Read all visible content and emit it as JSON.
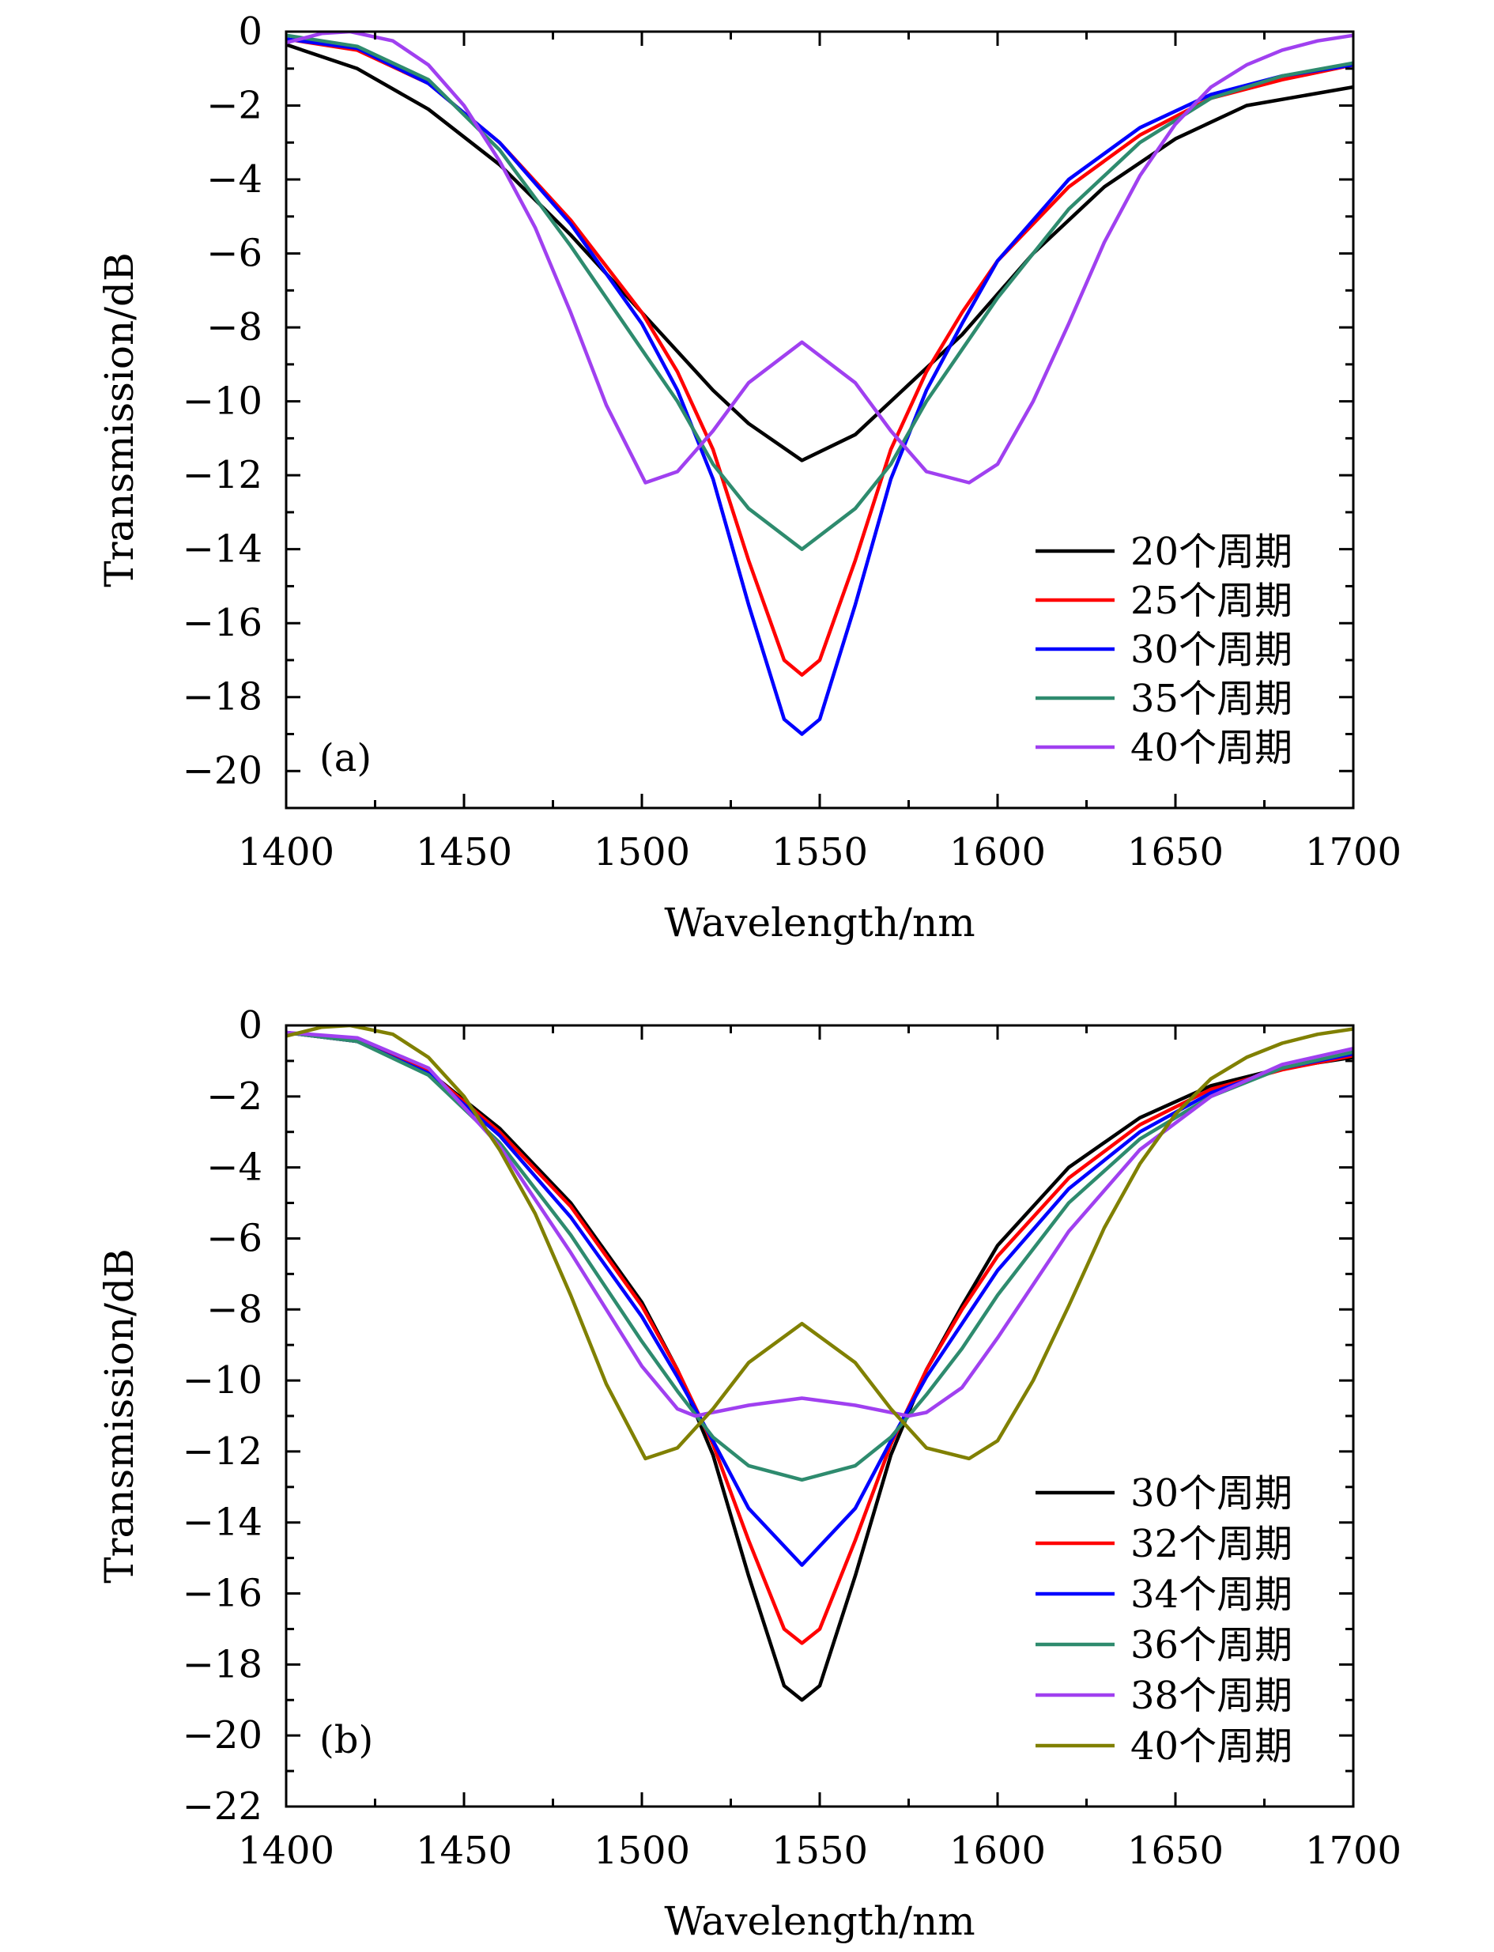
{
  "chart_data": [
    {
      "type": "line",
      "panel_label": "(a)",
      "xlabel": "Wavelength/nm",
      "ylabel": "Transmission/dB",
      "xlim": [
        1400,
        1700
      ],
      "ylim": [
        -21,
        0
      ],
      "xticks": [
        1400,
        1450,
        1500,
        1550,
        1600,
        1650,
        1700
      ],
      "xtick_labels": [
        "1400",
        "1450",
        "1500",
        "1550",
        "1600",
        "1650",
        "1700"
      ],
      "yticks": [
        0,
        -2,
        -4,
        -6,
        -8,
        -10,
        -12,
        -14,
        -16,
        -18,
        -20
      ],
      "ytick_labels": [
        "0",
        "−2",
        "−4",
        "−6",
        "−8",
        "−10",
        "−12",
        "−14",
        "−16",
        "−18",
        "−20"
      ],
      "grid": false,
      "legend_position": "bottom-right",
      "series": [
        {
          "name": "20个周期",
          "color": "#000000",
          "x": [
            1400,
            1420,
            1440,
            1460,
            1480,
            1500,
            1520,
            1530,
            1545,
            1560,
            1570,
            1590,
            1610,
            1630,
            1650,
            1670,
            1700
          ],
          "y": [
            -0.35,
            -1.0,
            -2.1,
            -3.6,
            -5.5,
            -7.6,
            -9.7,
            -10.6,
            -11.6,
            -10.9,
            -10.0,
            -8.2,
            -6.0,
            -4.2,
            -2.9,
            -2.0,
            -1.5
          ]
        },
        {
          "name": "25个周期",
          "color": "#ff0000",
          "x": [
            1400,
            1420,
            1440,
            1460,
            1480,
            1500,
            1510,
            1520,
            1530,
            1540,
            1545,
            1550,
            1560,
            1570,
            1580,
            1590,
            1600,
            1620,
            1640,
            1660,
            1680,
            1700
          ],
          "y": [
            -0.2,
            -0.5,
            -1.4,
            -3.0,
            -5.1,
            -7.6,
            -9.2,
            -11.3,
            -14.3,
            -17.0,
            -17.4,
            -17.0,
            -14.3,
            -11.3,
            -9.2,
            -7.6,
            -6.2,
            -4.2,
            -2.8,
            -1.8,
            -1.3,
            -0.9
          ]
        },
        {
          "name": "30个周期",
          "color": "#0000ff",
          "x": [
            1400,
            1420,
            1440,
            1460,
            1480,
            1500,
            1510,
            1520,
            1530,
            1540,
            1545,
            1550,
            1560,
            1570,
            1580,
            1590,
            1600,
            1620,
            1640,
            1660,
            1680,
            1700
          ],
          "y": [
            -0.2,
            -0.45,
            -1.4,
            -3.0,
            -5.2,
            -7.9,
            -9.7,
            -12.1,
            -15.5,
            -18.6,
            -19.0,
            -18.6,
            -15.5,
            -12.1,
            -9.7,
            -7.9,
            -6.2,
            -4.0,
            -2.6,
            -1.7,
            -1.2,
            -0.9
          ]
        },
        {
          "name": "35个周期",
          "color": "#2e8b6e",
          "x": [
            1400,
            1420,
            1440,
            1460,
            1480,
            1500,
            1510,
            1520,
            1530,
            1545,
            1560,
            1570,
            1580,
            1590,
            1600,
            1620,
            1640,
            1660,
            1680,
            1700
          ],
          "y": [
            -0.1,
            -0.4,
            -1.3,
            -3.2,
            -5.8,
            -8.6,
            -10.0,
            -11.7,
            -12.9,
            -14.0,
            -12.9,
            -11.7,
            -10.0,
            -8.6,
            -7.2,
            -4.8,
            -3.0,
            -1.8,
            -1.2,
            -0.85
          ]
        },
        {
          "name": "40个周期",
          "color": "#a040f0",
          "x": [
            1400,
            1410,
            1418,
            1430,
            1440,
            1450,
            1460,
            1470,
            1480,
            1490,
            1501,
            1510,
            1520,
            1530,
            1545,
            1560,
            1570,
            1580,
            1592,
            1600,
            1610,
            1620,
            1630,
            1640,
            1650,
            1660,
            1670,
            1680,
            1690,
            1700
          ],
          "y": [
            -0.3,
            -0.05,
            0.0,
            -0.25,
            -0.9,
            -2.0,
            -3.5,
            -5.3,
            -7.6,
            -10.1,
            -12.2,
            -11.9,
            -10.8,
            -9.5,
            -8.4,
            -9.5,
            -10.8,
            -11.9,
            -12.2,
            -11.7,
            -10.0,
            -7.9,
            -5.7,
            -3.9,
            -2.5,
            -1.5,
            -0.9,
            -0.5,
            -0.25,
            -0.1
          ]
        }
      ]
    },
    {
      "type": "line",
      "panel_label": "(b)",
      "xlabel": "Wavelength/nm",
      "ylabel": "Transmission/dB",
      "xlim": [
        1400,
        1700
      ],
      "ylim": [
        -22,
        0
      ],
      "xticks": [
        1400,
        1450,
        1500,
        1550,
        1600,
        1650,
        1700
      ],
      "xtick_labels": [
        "1400",
        "1450",
        "1500",
        "1550",
        "1600",
        "1650",
        "1700"
      ],
      "yticks": [
        0,
        -2,
        -4,
        -6,
        -8,
        -10,
        -12,
        -14,
        -16,
        -18,
        -20,
        -22
      ],
      "ytick_labels": [
        "0",
        "−2",
        "−4",
        "−6",
        "−8",
        "−10",
        "−12",
        "−14",
        "−16",
        "−18",
        "−20",
        "−22"
      ],
      "grid": false,
      "legend_position": "bottom-right",
      "series": [
        {
          "name": "30个周期",
          "color": "#000000",
          "x": [
            1400,
            1420,
            1440,
            1460,
            1480,
            1500,
            1510,
            1520,
            1530,
            1540,
            1545,
            1550,
            1560,
            1570,
            1580,
            1590,
            1600,
            1620,
            1640,
            1660,
            1680,
            1700
          ],
          "y": [
            -0.2,
            -0.45,
            -1.3,
            -2.9,
            -5.0,
            -7.8,
            -9.7,
            -12.1,
            -15.5,
            -18.6,
            -19.0,
            -18.6,
            -15.5,
            -12.1,
            -9.7,
            -7.9,
            -6.2,
            -4.0,
            -2.6,
            -1.7,
            -1.2,
            -0.9
          ]
        },
        {
          "name": "32个周期",
          "color": "#ff0000",
          "x": [
            1400,
            1420,
            1440,
            1460,
            1480,
            1500,
            1510,
            1520,
            1530,
            1540,
            1545,
            1550,
            1560,
            1570,
            1580,
            1590,
            1600,
            1620,
            1640,
            1660,
            1680,
            1700
          ],
          "y": [
            -0.2,
            -0.45,
            -1.3,
            -3.0,
            -5.1,
            -7.9,
            -9.7,
            -11.8,
            -14.5,
            -17.0,
            -17.4,
            -17.0,
            -14.5,
            -11.8,
            -9.7,
            -8.0,
            -6.5,
            -4.3,
            -2.8,
            -1.8,
            -1.25,
            -0.85
          ]
        },
        {
          "name": "34个周期",
          "color": "#0000ff",
          "x": [
            1400,
            1420,
            1440,
            1460,
            1480,
            1500,
            1510,
            1520,
            1530,
            1545,
            1560,
            1570,
            1580,
            1590,
            1600,
            1620,
            1640,
            1660,
            1680,
            1700
          ],
          "y": [
            -0.2,
            -0.45,
            -1.35,
            -3.1,
            -5.4,
            -8.2,
            -9.9,
            -11.7,
            -13.6,
            -15.2,
            -13.6,
            -11.7,
            -9.9,
            -8.4,
            -6.9,
            -4.6,
            -3.0,
            -1.9,
            -1.2,
            -0.8
          ]
        },
        {
          "name": "36个周期",
          "color": "#2e8b6e",
          "x": [
            1400,
            1420,
            1440,
            1460,
            1480,
            1500,
            1510,
            1520,
            1530,
            1545,
            1560,
            1570,
            1580,
            1590,
            1600,
            1620,
            1640,
            1660,
            1680,
            1700
          ],
          "y": [
            -0.2,
            -0.45,
            -1.4,
            -3.3,
            -5.9,
            -8.9,
            -10.3,
            -11.6,
            -12.4,
            -12.8,
            -12.4,
            -11.6,
            -10.4,
            -9.1,
            -7.6,
            -5.0,
            -3.2,
            -2.0,
            -1.2,
            -0.75
          ]
        },
        {
          "name": "38个周期",
          "color": "#a040f0",
          "x": [
            1400,
            1420,
            1440,
            1460,
            1480,
            1500,
            1510,
            1515,
            1530,
            1545,
            1560,
            1575,
            1580,
            1590,
            1600,
            1620,
            1640,
            1660,
            1680,
            1700
          ],
          "y": [
            -0.2,
            -0.35,
            -1.2,
            -3.4,
            -6.4,
            -9.6,
            -10.8,
            -11.0,
            -10.7,
            -10.5,
            -10.7,
            -11.0,
            -10.9,
            -10.2,
            -8.8,
            -5.8,
            -3.5,
            -2.0,
            -1.1,
            -0.65
          ]
        },
        {
          "name": "40个周期",
          "color": "#808000",
          "x": [
            1400,
            1410,
            1418,
            1430,
            1440,
            1450,
            1460,
            1470,
            1480,
            1490,
            1501,
            1510,
            1520,
            1530,
            1545,
            1560,
            1570,
            1580,
            1592,
            1600,
            1610,
            1620,
            1630,
            1640,
            1650,
            1660,
            1670,
            1680,
            1690,
            1700
          ],
          "y": [
            -0.3,
            -0.05,
            0.0,
            -0.25,
            -0.9,
            -2.0,
            -3.5,
            -5.3,
            -7.6,
            -10.1,
            -12.2,
            -11.9,
            -10.8,
            -9.5,
            -8.4,
            -9.5,
            -10.8,
            -11.9,
            -12.2,
            -11.7,
            -10.0,
            -7.9,
            -5.7,
            -3.9,
            -2.5,
            -1.5,
            -0.9,
            -0.5,
            -0.25,
            -0.1
          ]
        }
      ]
    }
  ]
}
